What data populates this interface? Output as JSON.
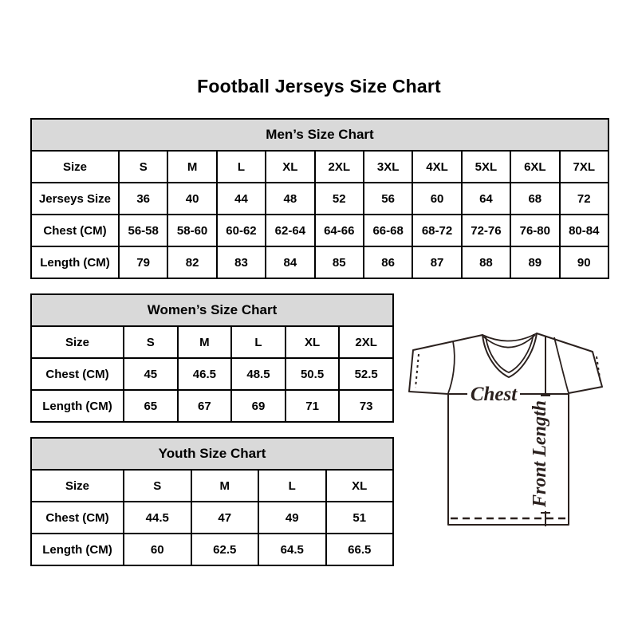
{
  "page": {
    "title": "Football Jerseys Size Chart"
  },
  "colors": {
    "table_header_bg": "#d9d9d9",
    "table_border": "#000000",
    "text_color": "#000000",
    "diagram_stroke": "#2b211e"
  },
  "tables": {
    "mens": {
      "title": "Men’s Size Chart",
      "rows": [
        {
          "cells": [
            "Size",
            "S",
            "M",
            "L",
            "XL",
            "2XL",
            "3XL",
            "4XL",
            "5XL",
            "6XL",
            "7XL"
          ]
        },
        {
          "cells": [
            "Jerseys Size",
            "36",
            "40",
            "44",
            "48",
            "52",
            "56",
            "60",
            "64",
            "68",
            "72"
          ]
        },
        {
          "cells": [
            "Chest (CM)",
            "56-58",
            "58-60",
            "60-62",
            "62-64",
            "64-66",
            "66-68",
            "68-72",
            "72-76",
            "76-80",
            "80-84"
          ]
        },
        {
          "cells": [
            "Length (CM)",
            "79",
            "82",
            "83",
            "84",
            "85",
            "86",
            "87",
            "88",
            "89",
            "90"
          ]
        }
      ]
    },
    "womens": {
      "title": "Women’s Size Chart",
      "rows": [
        {
          "cells": [
            "Size",
            "S",
            "M",
            "L",
            "XL",
            "2XL"
          ]
        },
        {
          "cells": [
            "Chest (CM)",
            "45",
            "46.5",
            "48.5",
            "50.5",
            "52.5"
          ]
        },
        {
          "cells": [
            "Length (CM)",
            "65",
            "67",
            "69",
            "71",
            "73"
          ]
        }
      ]
    },
    "youth": {
      "title": "Youth Size Chart",
      "rows": [
        {
          "cells": [
            "Size",
            "S",
            "M",
            "L",
            "XL"
          ]
        },
        {
          "cells": [
            "Chest (CM)",
            "44.5",
            "47",
            "49",
            "51"
          ]
        },
        {
          "cells": [
            "Length (CM)",
            "60",
            "62.5",
            "64.5",
            "66.5"
          ]
        }
      ]
    }
  },
  "diagram": {
    "chest_label": "Chest",
    "front_length_label": "Front Length"
  }
}
